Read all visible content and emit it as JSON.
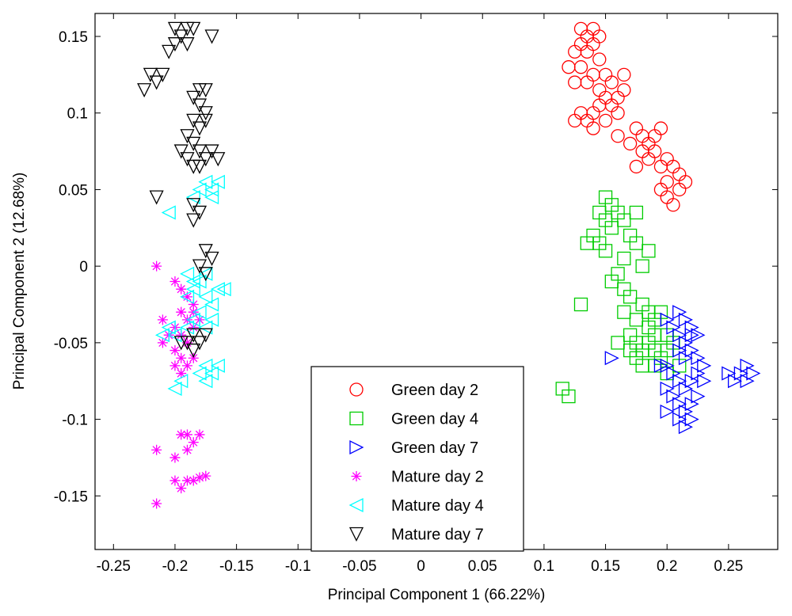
{
  "chart_data": {
    "type": "scatter",
    "title": "",
    "xlabel": "Principal Component 1 (66.22%)",
    "ylabel": "Principal Component 2 (12.68%)",
    "xlim": [
      -0.265,
      0.29
    ],
    "ylim": [
      -0.185,
      0.165
    ],
    "xticks": [
      -0.25,
      -0.2,
      -0.15,
      -0.1,
      -0.05,
      0,
      0.05,
      0.1,
      0.15,
      0.2,
      0.25
    ],
    "xtick_labels": [
      "-0.25",
      "-0.2",
      "-0.15",
      "-0.1",
      "-0.05",
      "0",
      "0.05",
      "0.1",
      "0.15",
      "0.2",
      "0.25"
    ],
    "yticks": [
      0.15,
      0.1,
      0.05,
      0,
      -0.05,
      -0.1,
      -0.15
    ],
    "ytick_labels": [
      "0.15",
      "0.1",
      "0.05",
      "0",
      "-0.05",
      "-0.1",
      "-0.15"
    ],
    "grid": false,
    "legend_position": "bottom-center",
    "series": [
      {
        "name": "Green day 2",
        "marker": "circle",
        "color": "#ff0000",
        "points": [
          [
            0.13,
            0.155
          ],
          [
            0.135,
            0.15
          ],
          [
            0.14,
            0.155
          ],
          [
            0.145,
            0.15
          ],
          [
            0.13,
            0.145
          ],
          [
            0.14,
            0.145
          ],
          [
            0.125,
            0.14
          ],
          [
            0.135,
            0.14
          ],
          [
            0.145,
            0.135
          ],
          [
            0.12,
            0.13
          ],
          [
            0.13,
            0.13
          ],
          [
            0.14,
            0.125
          ],
          [
            0.125,
            0.12
          ],
          [
            0.135,
            0.12
          ],
          [
            0.145,
            0.115
          ],
          [
            0.15,
            0.11
          ],
          [
            0.155,
            0.12
          ],
          [
            0.155,
            0.105
          ],
          [
            0.145,
            0.105
          ],
          [
            0.16,
            0.11
          ],
          [
            0.15,
            0.125
          ],
          [
            0.165,
            0.125
          ],
          [
            0.14,
            0.1
          ],
          [
            0.135,
            0.095
          ],
          [
            0.13,
            0.1
          ],
          [
            0.14,
            0.09
          ],
          [
            0.15,
            0.095
          ],
          [
            0.125,
            0.095
          ],
          [
            0.16,
            0.1
          ],
          [
            0.165,
            0.115
          ],
          [
            0.16,
            0.085
          ],
          [
            0.17,
            0.08
          ],
          [
            0.18,
            0.085
          ],
          [
            0.185,
            0.08
          ],
          [
            0.19,
            0.085
          ],
          [
            0.195,
            0.09
          ],
          [
            0.175,
            0.09
          ],
          [
            0.18,
            0.075
          ],
          [
            0.185,
            0.07
          ],
          [
            0.19,
            0.075
          ],
          [
            0.195,
            0.065
          ],
          [
            0.2,
            0.07
          ],
          [
            0.205,
            0.065
          ],
          [
            0.2,
            0.055
          ],
          [
            0.21,
            0.06
          ],
          [
            0.195,
            0.05
          ],
          [
            0.2,
            0.045
          ],
          [
            0.205,
            0.04
          ],
          [
            0.21,
            0.05
          ],
          [
            0.215,
            0.055
          ],
          [
            0.175,
            0.065
          ]
        ]
      },
      {
        "name": "Green day 4",
        "marker": "square",
        "color": "#00cc00",
        "points": [
          [
            0.15,
            0.045
          ],
          [
            0.155,
            0.04
          ],
          [
            0.16,
            0.035
          ],
          [
            0.145,
            0.035
          ],
          [
            0.15,
            0.03
          ],
          [
            0.155,
            0.025
          ],
          [
            0.165,
            0.03
          ],
          [
            0.175,
            0.035
          ],
          [
            0.14,
            0.02
          ],
          [
            0.145,
            0.015
          ],
          [
            0.15,
            0.01
          ],
          [
            0.135,
            0.015
          ],
          [
            0.17,
            0.02
          ],
          [
            0.175,
            0.015
          ],
          [
            0.165,
            0.005
          ],
          [
            0.18,
            0.0
          ],
          [
            0.16,
            -0.005
          ],
          [
            0.155,
            -0.01
          ],
          [
            0.165,
            -0.015
          ],
          [
            0.17,
            -0.02
          ],
          [
            0.185,
            0.01
          ],
          [
            0.13,
            -0.025
          ],
          [
            0.165,
            -0.03
          ],
          [
            0.175,
            -0.035
          ],
          [
            0.18,
            -0.025
          ],
          [
            0.185,
            -0.03
          ],
          [
            0.19,
            -0.035
          ],
          [
            0.195,
            -0.03
          ],
          [
            0.17,
            -0.045
          ],
          [
            0.175,
            -0.05
          ],
          [
            0.18,
            -0.055
          ],
          [
            0.185,
            -0.05
          ],
          [
            0.19,
            -0.055
          ],
          [
            0.195,
            -0.06
          ],
          [
            0.2,
            -0.055
          ],
          [
            0.18,
            -0.065
          ],
          [
            0.175,
            -0.06
          ],
          [
            0.19,
            -0.065
          ],
          [
            0.2,
            -0.045
          ],
          [
            0.205,
            -0.05
          ],
          [
            0.185,
            -0.04
          ],
          [
            0.115,
            -0.08
          ],
          [
            0.12,
            -0.085
          ],
          [
            0.16,
            -0.05
          ],
          [
            0.17,
            -0.055
          ],
          [
            0.2,
            -0.07
          ],
          [
            0.21,
            -0.065
          ],
          [
            0.19,
            -0.045
          ]
        ]
      },
      {
        "name": "Green day 7",
        "marker": "triangle-right",
        "color": "#0000ff",
        "points": [
          [
            0.21,
            -0.03
          ],
          [
            0.215,
            -0.035
          ],
          [
            0.22,
            -0.04
          ],
          [
            0.225,
            -0.045
          ],
          [
            0.21,
            -0.045
          ],
          [
            0.215,
            -0.05
          ],
          [
            0.22,
            -0.055
          ],
          [
            0.205,
            -0.04
          ],
          [
            0.2,
            -0.035
          ],
          [
            0.21,
            -0.055
          ],
          [
            0.215,
            -0.06
          ],
          [
            0.2,
            -0.065
          ],
          [
            0.205,
            -0.07
          ],
          [
            0.21,
            -0.075
          ],
          [
            0.215,
            -0.08
          ],
          [
            0.22,
            -0.075
          ],
          [
            0.225,
            -0.07
          ],
          [
            0.23,
            -0.075
          ],
          [
            0.205,
            -0.085
          ],
          [
            0.21,
            -0.09
          ],
          [
            0.215,
            -0.095
          ],
          [
            0.22,
            -0.09
          ],
          [
            0.225,
            -0.085
          ],
          [
            0.21,
            -0.1
          ],
          [
            0.215,
            -0.105
          ],
          [
            0.22,
            -0.1
          ],
          [
            0.2,
            -0.08
          ],
          [
            0.195,
            -0.065
          ],
          [
            0.26,
            -0.07
          ],
          [
            0.265,
            -0.065
          ],
          [
            0.27,
            -0.07
          ],
          [
            0.255,
            -0.075
          ],
          [
            0.25,
            -0.07
          ],
          [
            0.265,
            -0.075
          ],
          [
            0.155,
            -0.06
          ],
          [
            0.22,
            -0.045
          ],
          [
            0.23,
            -0.065
          ],
          [
            0.2,
            -0.095
          ],
          [
            0.225,
            -0.06
          ]
        ]
      },
      {
        "name": "Mature day 2",
        "marker": "asterisk",
        "color": "#ff00ff",
        "points": [
          [
            -0.215,
            0.0
          ],
          [
            -0.2,
            -0.01
          ],
          [
            -0.195,
            -0.015
          ],
          [
            -0.19,
            -0.02
          ],
          [
            -0.185,
            -0.025
          ],
          [
            -0.195,
            -0.03
          ],
          [
            -0.19,
            -0.035
          ],
          [
            -0.2,
            -0.04
          ],
          [
            -0.21,
            -0.035
          ],
          [
            -0.185,
            -0.04
          ],
          [
            -0.195,
            -0.045
          ],
          [
            -0.19,
            -0.05
          ],
          [
            -0.2,
            -0.055
          ],
          [
            -0.195,
            -0.06
          ],
          [
            -0.19,
            -0.065
          ],
          [
            -0.185,
            -0.06
          ],
          [
            -0.2,
            -0.065
          ],
          [
            -0.195,
            -0.07
          ],
          [
            -0.205,
            -0.045
          ],
          [
            -0.21,
            -0.05
          ],
          [
            -0.185,
            -0.03
          ],
          [
            -0.18,
            -0.035
          ],
          [
            -0.19,
            -0.11
          ],
          [
            -0.185,
            -0.115
          ],
          [
            -0.195,
            -0.11
          ],
          [
            -0.18,
            -0.11
          ],
          [
            -0.19,
            -0.12
          ],
          [
            -0.2,
            -0.125
          ],
          [
            -0.215,
            -0.12
          ],
          [
            -0.19,
            -0.14
          ],
          [
            -0.185,
            -0.14
          ],
          [
            -0.195,
            -0.145
          ],
          [
            -0.18,
            -0.138
          ],
          [
            -0.2,
            -0.14
          ],
          [
            -0.215,
            -0.155
          ],
          [
            -0.175,
            -0.137
          ]
        ]
      },
      {
        "name": "Mature day 4",
        "marker": "triangle-left",
        "color": "#00ffff",
        "points": [
          [
            -0.165,
            0.055
          ],
          [
            -0.17,
            0.05
          ],
          [
            -0.175,
            0.055
          ],
          [
            -0.18,
            0.05
          ],
          [
            -0.185,
            0.045
          ],
          [
            -0.17,
            0.045
          ],
          [
            -0.205,
            0.035
          ],
          [
            -0.175,
            -0.005
          ],
          [
            -0.18,
            -0.01
          ],
          [
            -0.185,
            -0.015
          ],
          [
            -0.19,
            -0.02
          ],
          [
            -0.175,
            -0.02
          ],
          [
            -0.17,
            -0.025
          ],
          [
            -0.165,
            -0.015
          ],
          [
            -0.18,
            -0.03
          ],
          [
            -0.185,
            -0.035
          ],
          [
            -0.19,
            -0.04
          ],
          [
            -0.2,
            -0.045
          ],
          [
            -0.205,
            -0.04
          ],
          [
            -0.21,
            -0.045
          ],
          [
            -0.175,
            -0.04
          ],
          [
            -0.17,
            -0.035
          ],
          [
            -0.165,
            -0.065
          ],
          [
            -0.17,
            -0.07
          ],
          [
            -0.175,
            -0.065
          ],
          [
            -0.18,
            -0.07
          ],
          [
            -0.195,
            -0.075
          ],
          [
            -0.2,
            -0.08
          ],
          [
            -0.185,
            -0.01
          ],
          [
            -0.19,
            -0.005
          ],
          [
            -0.16,
            -0.015
          ],
          [
            -0.175,
            -0.075
          ]
        ]
      },
      {
        "name": "Mature day 7",
        "marker": "triangle-down",
        "color": "#000000",
        "points": [
          [
            -0.2,
            0.155
          ],
          [
            -0.195,
            0.15
          ],
          [
            -0.19,
            0.155
          ],
          [
            -0.185,
            0.155
          ],
          [
            -0.2,
            0.145
          ],
          [
            -0.205,
            0.14
          ],
          [
            -0.19,
            0.145
          ],
          [
            -0.17,
            0.15
          ],
          [
            -0.22,
            0.125
          ],
          [
            -0.215,
            0.12
          ],
          [
            -0.225,
            0.115
          ],
          [
            -0.21,
            0.125
          ],
          [
            -0.18,
            0.115
          ],
          [
            -0.175,
            0.115
          ],
          [
            -0.185,
            0.11
          ],
          [
            -0.18,
            0.105
          ],
          [
            -0.175,
            0.1
          ],
          [
            -0.185,
            0.095
          ],
          [
            -0.18,
            0.09
          ],
          [
            -0.175,
            0.095
          ],
          [
            -0.19,
            0.085
          ],
          [
            -0.185,
            0.08
          ],
          [
            -0.18,
            0.075
          ],
          [
            -0.19,
            0.07
          ],
          [
            -0.185,
            0.065
          ],
          [
            -0.175,
            0.07
          ],
          [
            -0.17,
            0.075
          ],
          [
            -0.165,
            0.07
          ],
          [
            -0.18,
            0.065
          ],
          [
            -0.195,
            0.075
          ],
          [
            -0.215,
            0.045
          ],
          [
            -0.185,
            0.04
          ],
          [
            -0.18,
            0.035
          ],
          [
            -0.185,
            0.03
          ],
          [
            -0.175,
            0.01
          ],
          [
            -0.17,
            0.005
          ],
          [
            -0.18,
            0.0
          ],
          [
            -0.175,
            -0.005
          ],
          [
            -0.185,
            -0.045
          ],
          [
            -0.18,
            -0.05
          ],
          [
            -0.19,
            -0.05
          ],
          [
            -0.175,
            -0.045
          ],
          [
            -0.185,
            -0.055
          ],
          [
            -0.195,
            -0.05
          ]
        ]
      }
    ]
  }
}
